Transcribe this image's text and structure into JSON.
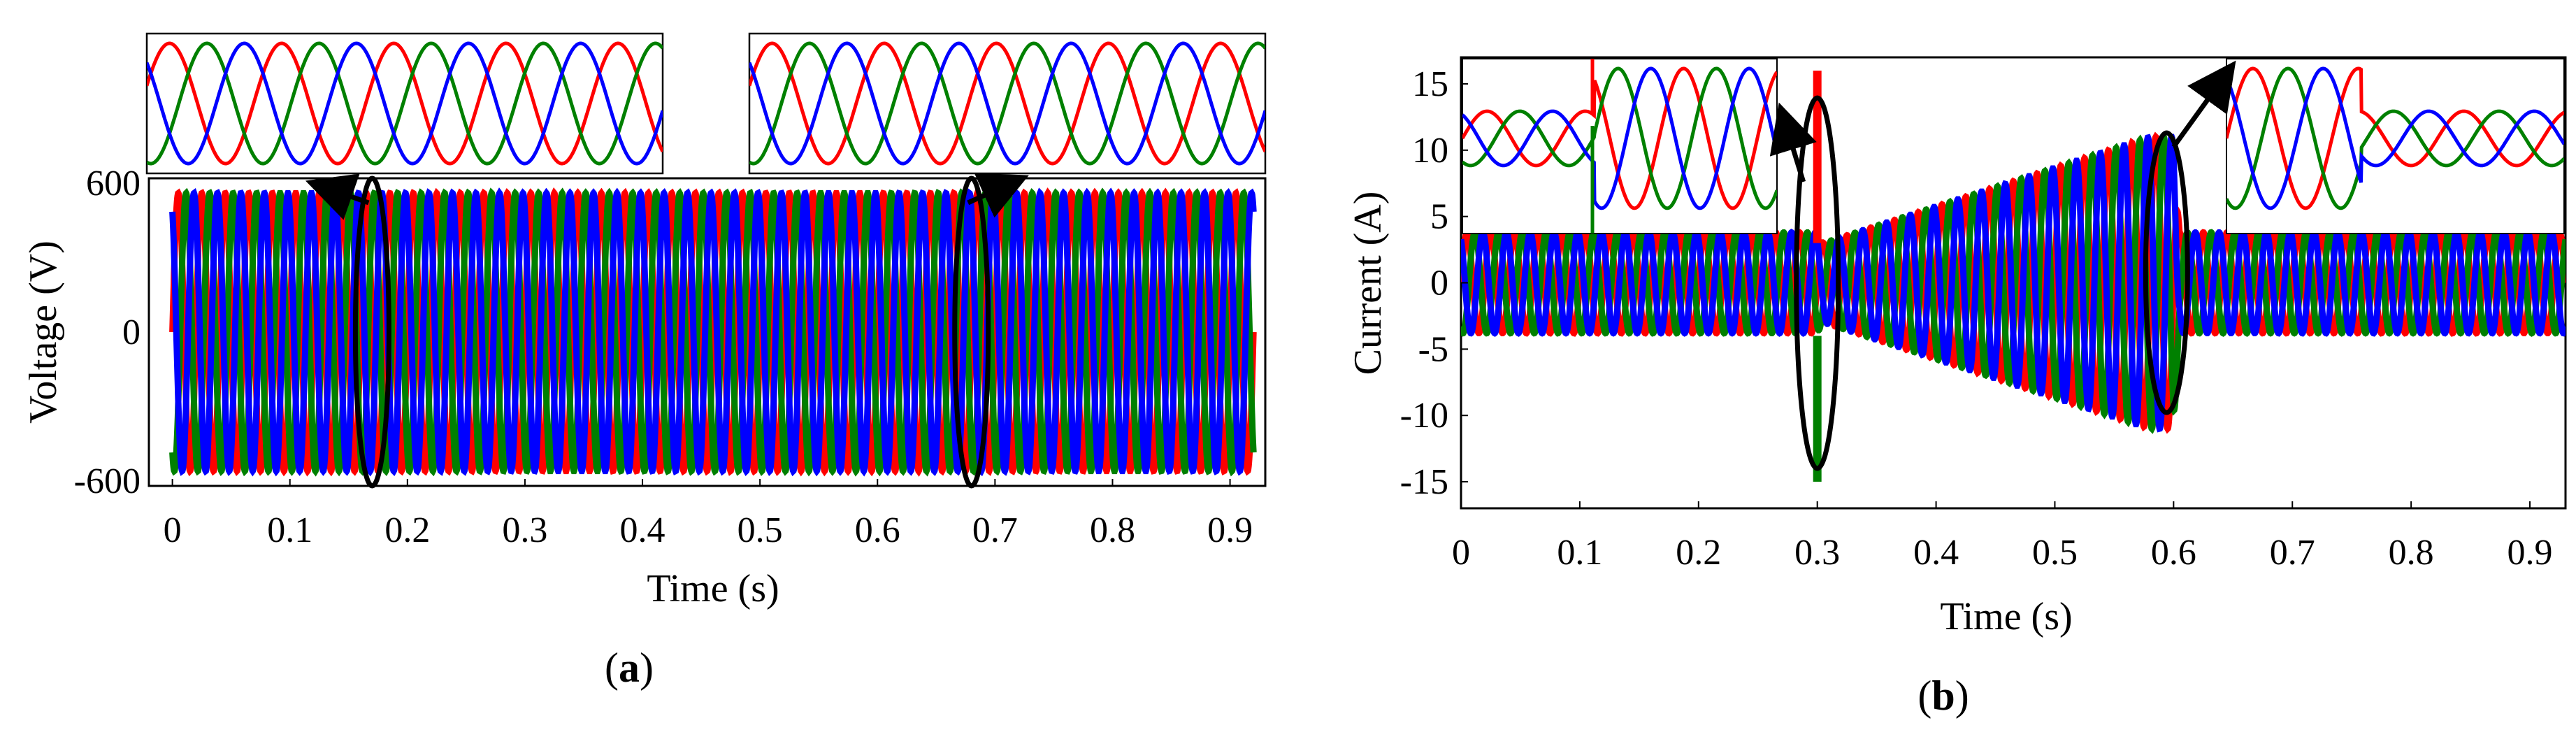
{
  "chart_data": [
    {
      "type": "line",
      "panel_label": "a",
      "xlabel": "Time (s)",
      "ylabel": "Voltage (V)",
      "xlim": [
        -0.02,
        0.93
      ],
      "ylim": [
        -620,
        620
      ],
      "x_ticks": [
        "0",
        "0.1",
        "0.2",
        "0.3",
        "0.4",
        "0.5",
        "0.6",
        "0.7",
        "0.8",
        "0.9"
      ],
      "y_ticks": [
        "600",
        "0",
        "-600"
      ],
      "series": [
        {
          "phase_color": "#ff0000",
          "amplitude": 560,
          "frequency_hz": 50,
          "phase_deg": 0
        },
        {
          "phase_color": "#008000",
          "amplitude": 560,
          "frequency_hz": 50,
          "phase_deg": -120
        },
        {
          "phase_color": "#0000ff",
          "amplitude": 560,
          "frequency_hz": 50,
          "phase_deg": 120
        }
      ],
      "zoom_marks": [
        0.17,
        0.68
      ]
    },
    {
      "type": "line",
      "panel_label": "b",
      "xlabel": "Time (s)",
      "ylabel": "Current (A)",
      "xlim": [
        0,
        0.93
      ],
      "ylim": [
        -17,
        17
      ],
      "x_ticks": [
        "0",
        "0.1",
        "0.2",
        "0.3",
        "0.4",
        "0.5",
        "0.6",
        "0.7",
        "0.8",
        "0.9"
      ],
      "y_ticks": [
        "15",
        "10",
        "5",
        "0",
        "-5",
        "-10",
        "-15"
      ],
      "series": [
        {
          "phase_color": "#ff0000",
          "frequency_hz": 50,
          "phase_deg": 0
        },
        {
          "phase_color": "#008000",
          "frequency_hz": 50,
          "phase_deg": -120
        },
        {
          "phase_color": "#0000ff",
          "frequency_hz": 50,
          "phase_deg": 120
        }
      ],
      "amplitude_profile": [
        {
          "t": 0,
          "amp": 3.8
        },
        {
          "t": 0.3,
          "amp": 3.8
        },
        {
          "t": 0.305,
          "amp": 3.0
        },
        {
          "t": 0.58,
          "amp": 11
        },
        {
          "t": 0.6,
          "amp": 11
        },
        {
          "t": 0.605,
          "amp": 3.8
        },
        {
          "t": 0.93,
          "amp": 3.8
        }
      ],
      "zoom_marks": [
        0.3,
        0.6
      ]
    }
  ]
}
